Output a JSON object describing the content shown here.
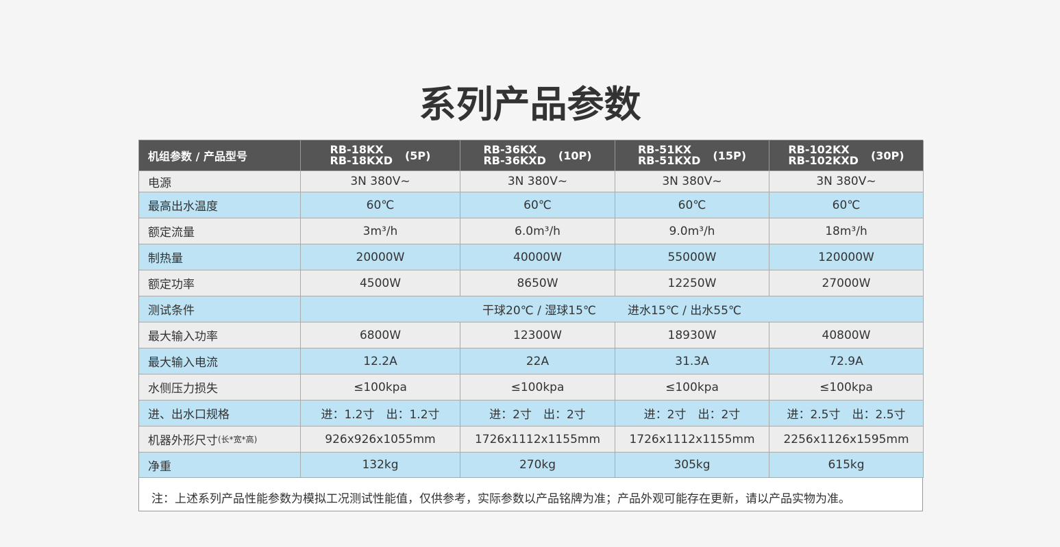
{
  "title": "系列产品参数",
  "table": {
    "header": {
      "label": "机组参数 / 产品型号",
      "models": [
        {
          "names": [
            "RB-18KX",
            "RB-18KXD"
          ],
          "power": "(5P)"
        },
        {
          "names": [
            "RB-36KX",
            "RB-36KXD"
          ],
          "power": "(10P)"
        },
        {
          "names": [
            "RB-51KX",
            "RB-51KXD"
          ],
          "power": "(15P)"
        },
        {
          "names": [
            "RB-102KX",
            "RB-102KXD"
          ],
          "power": "(30P)"
        }
      ]
    },
    "rows": [
      {
        "label": "电源",
        "cells": [
          "3N 380V~",
          "3N 380V~",
          "3N 380V~",
          "3N 380V~"
        ]
      },
      {
        "label": "最高出水温度",
        "cells": [
          "60℃",
          "60℃",
          "60℃",
          "60℃"
        ]
      },
      {
        "label": "额定流量",
        "cells": [
          "3m³/h",
          "6.0m³/h",
          "9.0m³/h",
          "18m³/h"
        ]
      },
      {
        "label": "制热量",
        "cells": [
          "20000W",
          "40000W",
          "55000W",
          "120000W"
        ]
      },
      {
        "label": "额定功率",
        "cells": [
          "4500W",
          "8650W",
          "12250W",
          "27000W"
        ]
      },
      {
        "label": "测试条件",
        "merged": [
          "干球20℃ / 湿球15℃",
          "进水15℃ / 出水55℃"
        ]
      },
      {
        "label": "最大输入功率",
        "cells": [
          "6800W",
          "12300W",
          "18930W",
          "40800W"
        ]
      },
      {
        "label": "最大输入电流",
        "cells": [
          "12.2A",
          "22A",
          "31.3A",
          "72.9A"
        ]
      },
      {
        "label": "水侧压力损失",
        "cells": [
          "≤100kpa",
          "≤100kpa",
          "≤100kpa",
          "≤100kpa"
        ]
      },
      {
        "label": "进、出水口规格",
        "cells": [
          "进：1.2寸　出：1.2寸",
          "进：2寸　出：2寸",
          "进：2寸　出：2寸",
          "进：2.5寸　出：2.5寸"
        ]
      },
      {
        "label": "机器外形尺寸",
        "sublabel": "(长*宽*高)",
        "cells": [
          "926x926x1055mm",
          "1726x1112x1155mm",
          "1726x1112x1155mm",
          "2256x1126x1595mm"
        ]
      },
      {
        "label": "净重",
        "cells": [
          "132kg",
          "270kg",
          "305kg",
          "615kg"
        ]
      }
    ]
  },
  "note": "注：上述系列产品性能参数为模拟工况测试性能值，仅供参考，实际参数以产品铭牌为准；产品外观可能存在更新，请以产品实物为准。"
}
